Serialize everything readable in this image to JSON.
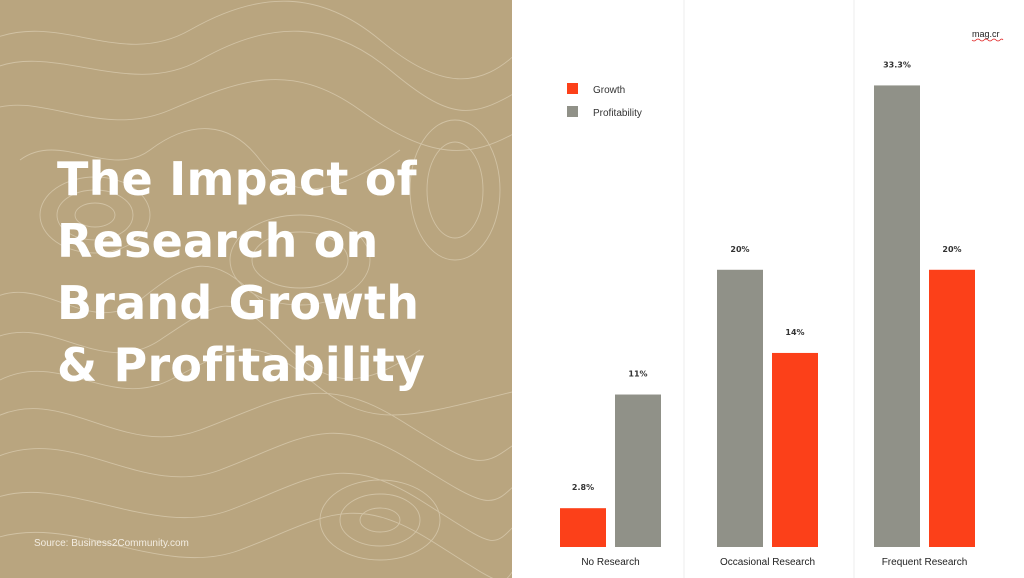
{
  "slide": {
    "title_lines": [
      "The Impact of",
      "Research on",
      "Brand Growth",
      "& Profitability"
    ],
    "source": "Source: Business2Community.com",
    "logo": "mag.cr",
    "colors": {
      "panel": "#b9a57f",
      "growth": "#fc4019",
      "profitability": "#909188"
    }
  },
  "chart_data": {
    "type": "bar",
    "title": "The Impact of Research on Brand Growth & Profitability",
    "xlabel": "",
    "ylabel": "",
    "categories": [
      "No Research",
      "Occasional Research",
      "Frequent Research"
    ],
    "ylim": [
      0,
      36
    ],
    "legend_position": "top-left",
    "grid": false,
    "series": [
      {
        "name": "Growth",
        "color": "#fc4019",
        "values": [
          2.8,
          14,
          20
        ],
        "labels": [
          "2.8%",
          "14%",
          "20%"
        ]
      },
      {
        "name": "Profitability",
        "color": "#909188",
        "values": [
          11,
          20,
          33.3
        ],
        "labels": [
          "11%",
          "20%",
          "33.3%"
        ]
      }
    ],
    "bar_order": [
      [
        "Growth",
        "Profitability"
      ],
      [
        "Profitability",
        "Growth"
      ],
      [
        "Profitability",
        "Growth"
      ]
    ]
  }
}
